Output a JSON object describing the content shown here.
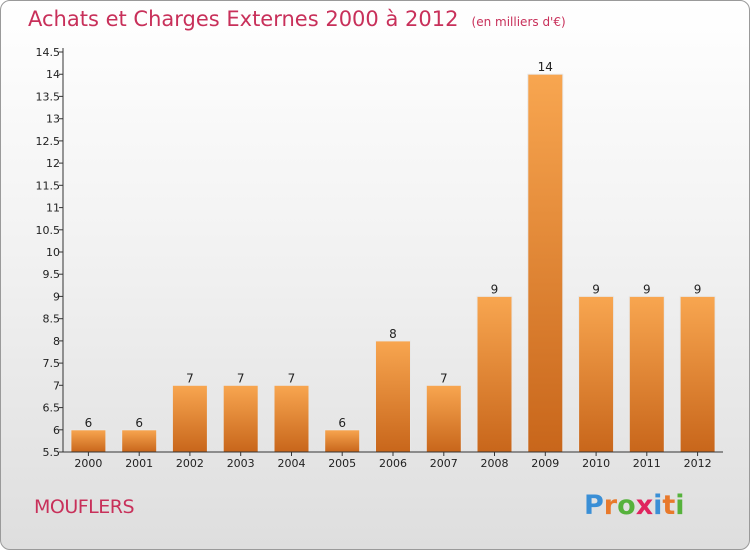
{
  "header": {
    "title": "Achats et Charges Externes 2000 à 2012",
    "unit": "(en milliers d'€)"
  },
  "footer": {
    "town": "MOUFLERS",
    "logo_letters": [
      "P",
      "r",
      "o",
      "x",
      "i",
      "t",
      "i"
    ],
    "logo_colors": [
      "#3a8fd6",
      "#e8792b",
      "#56b23c",
      "#e0245e",
      "#3a8fd6",
      "#e8792b",
      "#56b23c"
    ]
  },
  "colors": {
    "bar_light": "#f8a650",
    "bar_dark": "#c8661b",
    "text_accent": "#c8305a"
  },
  "chart_data": {
    "type": "bar",
    "categories": [
      "2000",
      "2001",
      "2002",
      "2003",
      "2004",
      "2005",
      "2006",
      "2007",
      "2008",
      "2009",
      "2010",
      "2011",
      "2012"
    ],
    "values": [
      6,
      6,
      7,
      7,
      7,
      6,
      8,
      7,
      9,
      14,
      9,
      9,
      9
    ],
    "data_labels": [
      "6",
      "6",
      "7",
      "7",
      "7",
      "6",
      "8",
      "7",
      "9",
      "14",
      "9",
      "9",
      "9"
    ],
    "ylim": [
      5.5,
      14.5
    ],
    "yticks": [
      5.5,
      6,
      6.5,
      7,
      7.5,
      8,
      8.5,
      9,
      9.5,
      10,
      10.5,
      11,
      11.5,
      12,
      12.5,
      13,
      13.5,
      14,
      14.5
    ],
    "ytick_labels": [
      "5.5",
      "6",
      "6.5",
      "7",
      "7.5",
      "8",
      "8.5",
      "9",
      "9.5",
      "10",
      "10.5",
      "11",
      "11.5",
      "12",
      "12.5",
      "13",
      "13.5",
      "14",
      "14.5"
    ],
    "grid": false,
    "legend": "none"
  }
}
